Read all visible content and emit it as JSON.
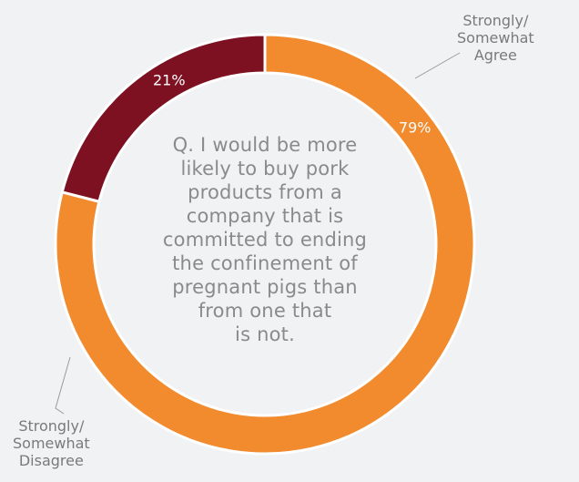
{
  "chart_data": {
    "type": "pie",
    "donut": true,
    "start_angle_deg": 0,
    "direction": "clockwise",
    "slices": [
      {
        "label": [
          "Strongly/",
          "Somewhat",
          "Agree"
        ],
        "value": 79,
        "value_label": "79%",
        "color": "#f28a2e"
      },
      {
        "label": [
          "Strongly/",
          "Somewhat",
          "Disagree"
        ],
        "value": 21,
        "value_label": "21%",
        "color": "#7e1121"
      }
    ],
    "center_text": [
      "Q. I would be more",
      "likely to buy pork",
      "products from a",
      "company that is",
      "committed to ending",
      "the confinement of",
      "pregnant pigs than",
      "from one that",
      "is not."
    ]
  }
}
